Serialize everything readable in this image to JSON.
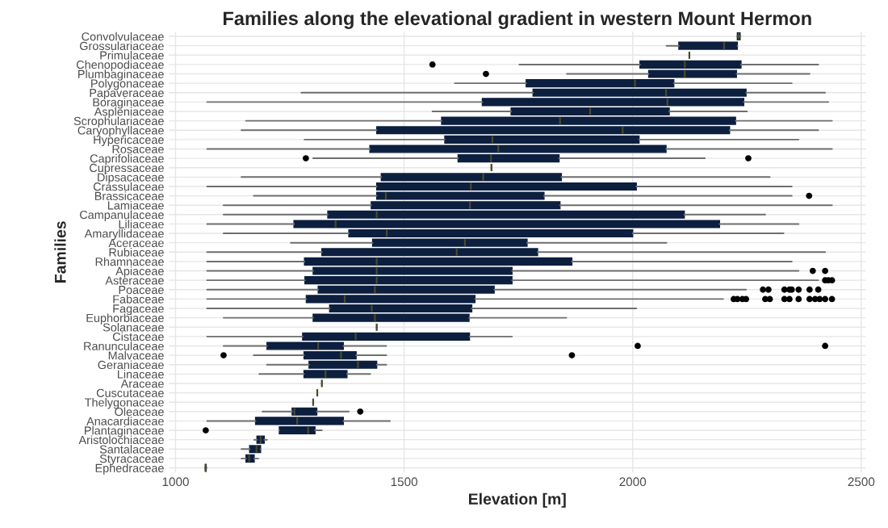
{
  "chart_data": {
    "type": "box",
    "orientation": "horizontal",
    "title": "Families along the elevational gradient in western Mount Hermon",
    "xlabel": "Elevation [m]",
    "ylabel": "Families",
    "categories": [
      "Convolvulaceae",
      "Grossulariaceae",
      "Primulaceae",
      "Chenopodiaceae",
      "Plumbaginaceae",
      "Polygonaceae",
      "Papaveraceae",
      "Boraginaceae",
      "Aspleniaceae",
      "Scrophulariaceae",
      "Caryophyllaceae",
      "Hypericaceae",
      "Rosaceae",
      "Caprifoliaceae",
      "Cupressaceae",
      "Dipsacaceae",
      "Crassulaceae",
      "Brassicaceae",
      "Lamiaceae",
      "Campanulaceae",
      "Liliaceae",
      "Amaryllidaceae",
      "Aceraceae",
      "Rubiaceae",
      "Rhamnaceae",
      "Apiaceae",
      "Asteraceae",
      "Poaceae",
      "Fabaceae",
      "Fagaceae",
      "Euphorbiaceae",
      "Solanaceae",
      "Cistaceae",
      "Ranunculaceae",
      "Malvaceae",
      "Geraniaceae",
      "Linaceae",
      "Araceae",
      "Cuscutaceae",
      "Thelygonaceae",
      "Oleaceae",
      "Anacardiaceae",
      "Plantaginaceae",
      "Aristolochiaceae",
      "Santalaceae",
      "Styracaceae",
      "Ephedraceae"
    ],
    "boxes": [
      {
        "low": 2228,
        "q1": 2229,
        "median": 2232,
        "q3": 2235,
        "high": 2236
      },
      {
        "low": 2074,
        "q1": 2101,
        "median": 2200,
        "q3": 2229,
        "high": 2229
      },
      {
        "low": 2124,
        "q1": 2124,
        "median": 2124,
        "q3": 2124,
        "high": 2124
      },
      {
        "low": 1752,
        "q1": 2016,
        "median": 2114,
        "q3": 2237,
        "high": 2406,
        "outliers": [
          1562
        ]
      },
      {
        "low": 1856,
        "q1": 2035,
        "median": 2114,
        "q3": 2227,
        "high": 2387,
        "outliers": [
          1679
        ]
      },
      {
        "low": 1611,
        "q1": 1767,
        "median": 2005,
        "q3": 2090,
        "high": 2348
      },
      {
        "low": 1275,
        "q1": 1782,
        "median": 2073,
        "q3": 2248,
        "high": 2421
      },
      {
        "low": 1069,
        "q1": 1671,
        "median": 2076,
        "q3": 2243,
        "high": 2428
      },
      {
        "low": 1562,
        "q1": 1734,
        "median": 1907,
        "q3": 2080,
        "high": 2250
      },
      {
        "low": 1154,
        "q1": 1582,
        "median": 1841,
        "q3": 2225,
        "high": 2436
      },
      {
        "low": 1144,
        "q1": 1440,
        "median": 1978,
        "q3": 2212,
        "high": 2406
      },
      {
        "low": 1282,
        "q1": 1589,
        "median": 1693,
        "q3": 2014,
        "high": 2363
      },
      {
        "low": 1069,
        "q1": 1425,
        "median": 1706,
        "q3": 2073,
        "high": 2436
      },
      {
        "low": 1301,
        "q1": 1618,
        "median": 1690,
        "q3": 1839,
        "high": 2158,
        "outliers": [
          1285,
          2253
        ]
      },
      {
        "low": 1691,
        "q1": 1691,
        "median": 1691,
        "q3": 1691,
        "high": 1691
      },
      {
        "low": 1144,
        "q1": 1450,
        "median": 1673,
        "q3": 1844,
        "high": 2300
      },
      {
        "low": 1069,
        "q1": 1440,
        "median": 1646,
        "q3": 2008,
        "high": 2348
      },
      {
        "low": 1171,
        "q1": 1440,
        "median": 1460,
        "q3": 1806,
        "high": 2348,
        "outliers": [
          2386
        ]
      },
      {
        "low": 1105,
        "q1": 1428,
        "median": 1644,
        "q3": 1841,
        "high": 2436
      },
      {
        "low": 1105,
        "q1": 1333,
        "median": 1440,
        "q3": 2113,
        "high": 2290
      },
      {
        "low": 1069,
        "q1": 1259,
        "median": 1350,
        "q3": 2190,
        "high": 2363
      },
      {
        "low": 1105,
        "q1": 1379,
        "median": 1462,
        "q3": 2000,
        "high": 2330
      },
      {
        "low": 1252,
        "q1": 1431,
        "median": 1633,
        "q3": 1769,
        "high": 2074
      },
      {
        "low": 1069,
        "q1": 1320,
        "median": 1615,
        "q3": 1792,
        "high": 2421
      },
      {
        "low": 1069,
        "q1": 1282,
        "median": 1440,
        "q3": 1867,
        "high": 2348
      },
      {
        "low": 1069,
        "q1": 1301,
        "median": 1440,
        "q3": 1736,
        "high": 2363,
        "outliers": [
          2394,
          2421
        ]
      },
      {
        "low": 1069,
        "q1": 1283,
        "median": 1440,
        "q3": 1736,
        "high": 2406,
        "outliers": [
          2421,
          2428,
          2436
        ]
      },
      {
        "low": 1069,
        "q1": 1312,
        "median": 1436,
        "q3": 1697,
        "high": 2248,
        "outliers": [
          2285,
          2297,
          2332,
          2343,
          2348,
          2363,
          2387,
          2406
        ]
      },
      {
        "low": 1069,
        "q1": 1286,
        "median": 1370,
        "q3": 1655,
        "high": 2198,
        "outliers": [
          2221,
          2229,
          2240,
          2248,
          2290,
          2300,
          2332,
          2343,
          2363,
          2387,
          2399,
          2409,
          2421,
          2436
        ]
      },
      {
        "low": 1069,
        "q1": 1337,
        "median": 1429,
        "q3": 1648,
        "high": 2008
      },
      {
        "low": 1105,
        "q1": 1301,
        "median": 1436,
        "q3": 1642,
        "high": 1855
      },
      {
        "low": 1440,
        "q1": 1440,
        "median": 1440,
        "q3": 1440,
        "high": 1440
      },
      {
        "low": 1069,
        "q1": 1278,
        "median": 1394,
        "q3": 1643,
        "high": 1736
      },
      {
        "low": 1105,
        "q1": 1200,
        "median": 1312,
        "q3": 1367,
        "high": 1461,
        "outliers": [
          2011,
          2421
        ]
      },
      {
        "low": 1171,
        "q1": 1281,
        "median": 1362,
        "q3": 1395,
        "high": 1461,
        "outliers": [
          1105,
          1867
        ]
      },
      {
        "low": 1200,
        "q1": 1292,
        "median": 1399,
        "q3": 1440,
        "high": 1461
      },
      {
        "low": 1183,
        "q1": 1281,
        "median": 1328,
        "q3": 1375,
        "high": 1426
      },
      {
        "low": 1320,
        "q1": 1320,
        "median": 1320,
        "q3": 1320,
        "high": 1320
      },
      {
        "low": 1310,
        "q1": 1310,
        "median": 1310,
        "q3": 1310,
        "high": 1310
      },
      {
        "low": 1301,
        "q1": 1301,
        "median": 1301,
        "q3": 1301,
        "high": 1301
      },
      {
        "low": 1190,
        "q1": 1255,
        "median": 1260,
        "q3": 1309,
        "high": 1379,
        "outliers": [
          1404
        ]
      },
      {
        "low": 1069,
        "q1": 1175,
        "median": 1266,
        "q3": 1367,
        "high": 1469
      },
      {
        "low": 1227,
        "q1": 1227,
        "median": 1290,
        "q3": 1305,
        "high": 1320,
        "outliers": [
          1066
        ]
      },
      {
        "low": 1172,
        "q1": 1178,
        "median": 1186,
        "q3": 1194,
        "high": 1200
      },
      {
        "low": 1144,
        "q1": 1162,
        "median": 1177,
        "q3": 1186,
        "high": 1186
      },
      {
        "low": 1144,
        "q1": 1154,
        "median": 1161,
        "q3": 1172,
        "high": 1181
      },
      {
        "low": 1064,
        "q1": 1065,
        "median": 1066,
        "q3": 1067,
        "high": 1068
      }
    ],
    "color": "#0c1f3f",
    "xlim": [
      985,
      2510
    ],
    "xticks": [
      1000,
      1500,
      2000,
      2500
    ],
    "grid": true
  }
}
